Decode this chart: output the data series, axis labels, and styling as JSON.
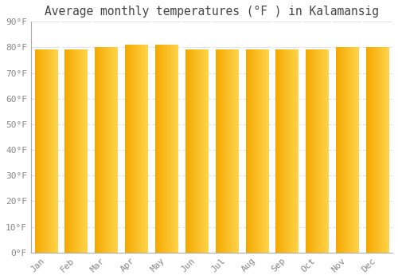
{
  "title": "Average monthly temperatures (°F ) in Kalamansig",
  "months": [
    "Jan",
    "Feb",
    "Mar",
    "Apr",
    "May",
    "Jun",
    "Jul",
    "Aug",
    "Sep",
    "Oct",
    "Nov",
    "Dec"
  ],
  "values": [
    79,
    79,
    80,
    81,
    81,
    79,
    79,
    79,
    79,
    79,
    80,
    80
  ],
  "bar_color_left": "#F5A800",
  "bar_color_right": "#FFD44A",
  "background_color": "#FFFFFF",
  "plot_bg_color": "#FFFFFF",
  "grid_color": "#DDDDDD",
  "ylim": [
    0,
    90
  ],
  "yticks": [
    0,
    10,
    20,
    30,
    40,
    50,
    60,
    70,
    80,
    90
  ],
  "ytick_labels": [
    "0°F",
    "10°F",
    "20°F",
    "30°F",
    "40°F",
    "50°F",
    "60°F",
    "70°F",
    "80°F",
    "90°F"
  ],
  "title_fontsize": 10.5,
  "tick_fontsize": 8,
  "font_color": "#888888",
  "bar_width": 0.75
}
